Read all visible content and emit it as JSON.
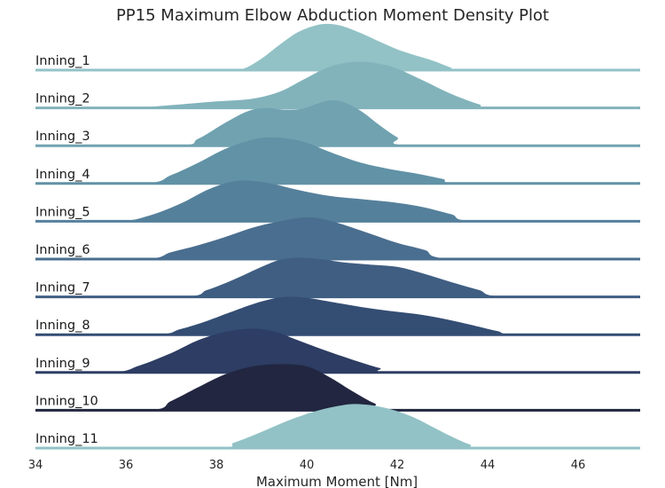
{
  "chart_data": {
    "type": "area",
    "title": "PP15 Maximum Elbow Abduction Moment Density Plot",
    "xlabel": "Maximum Moment [Nm]",
    "ylabel": "",
    "xlim": [
      34,
      47.3
    ],
    "xticks": [
      34,
      36,
      38,
      40,
      42,
      44,
      46
    ],
    "grid": false,
    "legend": "none",
    "series": [
      {
        "name": "Inning_1",
        "color": "#92c2c6",
        "x": [
          34,
          38.2,
          38.6,
          39.0,
          39.4,
          39.8,
          40.2,
          40.5,
          40.8,
          41.2,
          41.6,
          42.0,
          42.4,
          42.8,
          43.2,
          43.4,
          47.3
        ],
        "y": [
          0,
          0,
          0.03,
          0.25,
          0.55,
          0.82,
          0.97,
          1.0,
          0.95,
          0.8,
          0.62,
          0.45,
          0.32,
          0.2,
          0.05,
          0,
          0
        ]
      },
      {
        "name": "Inning_2",
        "color": "#82b3bb",
        "x": [
          34,
          36.0,
          37.0,
          38.0,
          38.8,
          39.4,
          39.9,
          40.4,
          40.8,
          41.2,
          41.6,
          42.0,
          42.6,
          43.2,
          43.8,
          44.2,
          47.3
        ],
        "y": [
          0,
          0,
          0.06,
          0.14,
          0.2,
          0.35,
          0.6,
          0.85,
          0.97,
          1.0,
          0.96,
          0.85,
          0.58,
          0.3,
          0.08,
          0,
          0
        ]
      },
      {
        "name": "Inning_3",
        "color": "#70a2b0",
        "x": [
          34,
          37.1,
          37.6,
          38.2,
          38.7,
          39.1,
          39.5,
          39.9,
          40.2,
          40.5,
          40.8,
          41.2,
          41.6,
          42.0,
          42.4,
          47.3
        ],
        "y": [
          0,
          0,
          0.15,
          0.5,
          0.75,
          0.82,
          0.78,
          0.8,
          0.9,
          0.98,
          0.95,
          0.75,
          0.45,
          0.18,
          0,
          0
        ]
      },
      {
        "name": "Inning_4",
        "color": "#6192a6",
        "x": [
          34,
          36.4,
          37.0,
          37.6,
          38.2,
          38.8,
          39.2,
          39.6,
          40.0,
          40.6,
          41.2,
          41.8,
          42.4,
          43.0,
          43.5,
          47.3
        ],
        "y": [
          0,
          0,
          0.18,
          0.45,
          0.75,
          0.95,
          1.0,
          0.97,
          0.88,
          0.65,
          0.45,
          0.32,
          0.22,
          0.1,
          0,
          0
        ]
      },
      {
        "name": "Inning_5",
        "color": "#55809b",
        "x": [
          34,
          35.8,
          36.5,
          37.2,
          37.8,
          38.3,
          38.7,
          39.2,
          39.8,
          40.5,
          41.2,
          42.0,
          42.6,
          43.2,
          43.8,
          47.3
        ],
        "y": [
          0,
          0,
          0.12,
          0.38,
          0.68,
          0.85,
          0.88,
          0.82,
          0.68,
          0.55,
          0.48,
          0.4,
          0.3,
          0.15,
          0,
          0
        ]
      },
      {
        "name": "Inning_6",
        "color": "#4a6e8f",
        "x": [
          34,
          36.4,
          37.0,
          37.6,
          38.2,
          38.8,
          39.4,
          39.9,
          40.3,
          40.8,
          41.4,
          42.0,
          42.6,
          43.3,
          47.3
        ],
        "y": [
          0,
          0,
          0.15,
          0.3,
          0.48,
          0.68,
          0.82,
          0.9,
          0.88,
          0.75,
          0.55,
          0.35,
          0.2,
          0,
          0
        ]
      },
      {
        "name": "Inning_7",
        "color": "#3f5e82",
        "x": [
          34,
          37.2,
          37.8,
          38.4,
          39.0,
          39.4,
          39.8,
          40.3,
          40.8,
          41.4,
          42.0,
          42.6,
          43.2,
          43.8,
          44.4,
          47.3
        ],
        "y": [
          0,
          0,
          0.15,
          0.38,
          0.65,
          0.8,
          0.85,
          0.82,
          0.75,
          0.7,
          0.65,
          0.5,
          0.32,
          0.15,
          0,
          0
        ]
      },
      {
        "name": "Inning_8",
        "color": "#344d73",
        "x": [
          34,
          36.6,
          37.2,
          37.8,
          38.4,
          39.0,
          39.5,
          40.0,
          40.6,
          41.2,
          41.8,
          42.4,
          43.0,
          43.6,
          44.2,
          44.7,
          47.3
        ],
        "y": [
          0,
          0,
          0.12,
          0.3,
          0.52,
          0.72,
          0.82,
          0.8,
          0.7,
          0.6,
          0.52,
          0.45,
          0.35,
          0.22,
          0.08,
          0,
          0
        ]
      },
      {
        "name": "Inning_9",
        "color": "#2d3d63",
        "x": [
          34,
          35.7,
          36.3,
          37.0,
          37.6,
          38.2,
          38.8,
          39.3,
          39.8,
          40.4,
          41.0,
          41.6,
          42.1,
          47.3
        ],
        "y": [
          0,
          0,
          0.15,
          0.42,
          0.7,
          0.88,
          0.95,
          0.88,
          0.7,
          0.48,
          0.28,
          0.1,
          0,
          0
        ]
      },
      {
        "name": "Inning_10",
        "color": "#222640",
        "x": [
          34,
          36.5,
          37.0,
          37.6,
          38.2,
          38.8,
          39.4,
          40.0,
          40.5,
          41.0,
          41.5,
          42.0,
          47.3
        ],
        "y": [
          0,
          0,
          0.2,
          0.5,
          0.78,
          0.95,
          1.0,
          0.95,
          0.72,
          0.42,
          0.15,
          0,
          0
        ]
      },
      {
        "name": "Inning_11",
        "color": "#92c2c6",
        "x": [
          34,
          37.9,
          38.4,
          39.0,
          39.6,
          40.2,
          40.8,
          41.2,
          41.6,
          42.0,
          42.4,
          42.8,
          43.2,
          43.6,
          44.0,
          47.3
        ],
        "y": [
          0,
          0,
          0.12,
          0.35,
          0.6,
          0.8,
          0.93,
          0.95,
          0.9,
          0.8,
          0.65,
          0.45,
          0.25,
          0.08,
          0,
          0
        ]
      }
    ]
  }
}
